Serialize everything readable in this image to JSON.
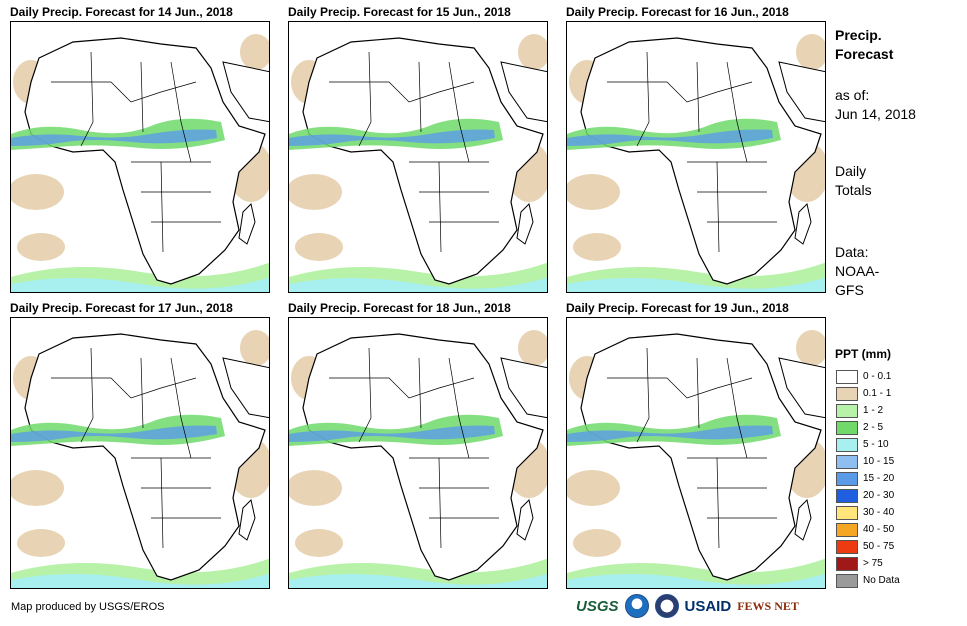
{
  "panels": [
    {
      "title": "Daily Precip. Forecast for 14 Jun., 2018"
    },
    {
      "title": "Daily Precip. Forecast for 15 Jun., 2018"
    },
    {
      "title": "Daily Precip. Forecast for 16 Jun., 2018"
    },
    {
      "title": "Daily Precip. Forecast for 17 Jun., 2018"
    },
    {
      "title": "Daily Precip. Forecast for 18 Jun., 2018"
    },
    {
      "title": "Daily Precip. Forecast for 19 Jun., 2018"
    }
  ],
  "sidebar": {
    "title_line1": "Precip.",
    "title_line2": "Forecast",
    "asof_label": "as of:",
    "asof_date": "Jun 14, 2018",
    "totals_line1": "Daily",
    "totals_line2": "Totals",
    "source_line1": "Data:",
    "source_line2": "NOAA-",
    "source_line3": "GFS"
  },
  "legend": {
    "title": "PPT (mm)",
    "items": [
      {
        "label": "0 - 0.1",
        "color": "#ffffff"
      },
      {
        "label": "0.1 - 1",
        "color": "#e8d4b4"
      },
      {
        "label": "1 - 2",
        "color": "#b7f2a8"
      },
      {
        "label": "2 - 5",
        "color": "#6fd96a"
      },
      {
        "label": "5 - 10",
        "color": "#a8f0f0"
      },
      {
        "label": "10 - 15",
        "color": "#8fbff0"
      },
      {
        "label": "15 - 20",
        "color": "#5a9be8"
      },
      {
        "label": "20 - 30",
        "color": "#1f5fe0"
      },
      {
        "label": "30 - 40",
        "color": "#ffe57a"
      },
      {
        "label": "40 - 50",
        "color": "#f5a623"
      },
      {
        "label": "50 - 75",
        "color": "#ee3a10"
      },
      {
        "label": "> 75",
        "color": "#a01818"
      },
      {
        "label": "No Data",
        "color": "#9a9a9a"
      }
    ]
  },
  "footer": {
    "credit": "Map produced by USGS/EROS",
    "logo_usgs": "USGS",
    "logo_usaid": "USAID",
    "logo_fews": "FEWS NET"
  }
}
